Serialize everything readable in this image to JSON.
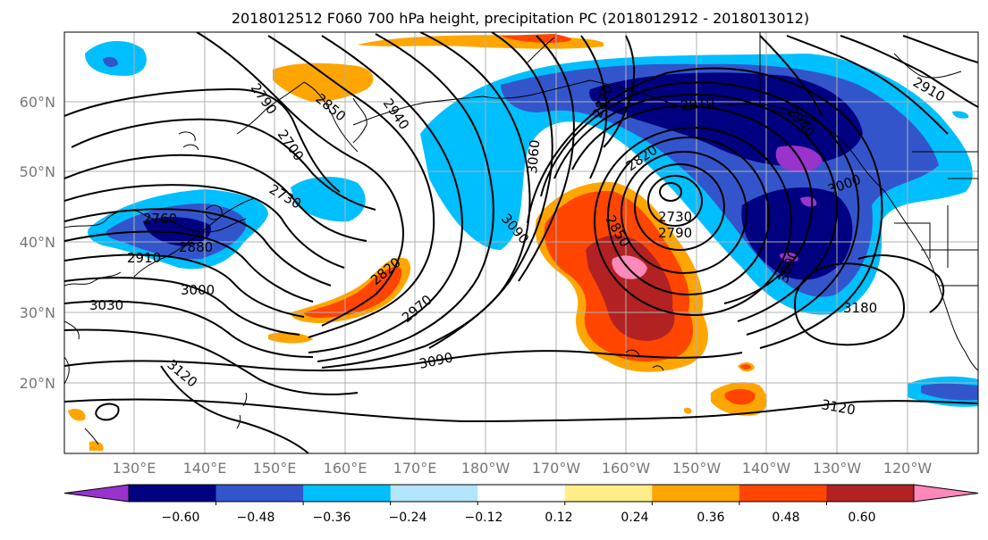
{
  "title": "2018012512 F060 700 hPa height, precipitation PC (2018012912 - 2018013012)",
  "lat_labels": [
    "60°N",
    "50°N",
    "40°N",
    "30°N",
    "20°N"
  ],
  "lon_labels": [
    "130°E",
    "140°E",
    "150°E",
    "160°E",
    "170°E",
    "180°W",
    "170°W",
    "160°W",
    "150°W",
    "140°W",
    "130°W",
    "120°W"
  ],
  "contour_labels": [
    "2790",
    "2850",
    "2940",
    "2700",
    "2730",
    "2760",
    "2880",
    "2910",
    "3000",
    "3030",
    "3120",
    "2820",
    "2970",
    "3090",
    "3090",
    "2870",
    "2910",
    "2820",
    "2850",
    "2730",
    "2790",
    "3060",
    "2940",
    "3000",
    "3180",
    "2910",
    "3120",
    "3090"
  ],
  "colorbar": {
    "ticks": [
      "−0.60",
      "−0.48",
      "−0.36",
      "−0.24",
      "−0.12",
      "0.12",
      "0.24",
      "0.36",
      "0.48",
      "0.60"
    ],
    "colors": [
      "#9933cc",
      "#000080",
      "#3355cc",
      "#00bfff",
      "#b3e5ff",
      "#ffffff",
      "#ffee88",
      "#ffa500",
      "#ff4500",
      "#b22222",
      "#ff88bb"
    ]
  }
}
